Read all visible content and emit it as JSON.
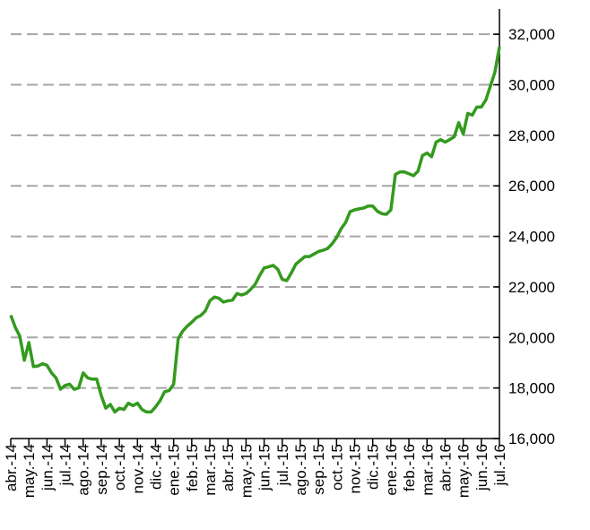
{
  "chart_data": {
    "type": "line",
    "categories": [
      "abr.-14",
      null,
      null,
      null,
      "may.-14",
      null,
      null,
      null,
      "jun.-14",
      null,
      null,
      null,
      "jul.-14",
      null,
      null,
      null,
      "ago.-14",
      null,
      null,
      null,
      "sep.-14",
      null,
      null,
      null,
      "oct.-14",
      null,
      null,
      null,
      "nov.-14",
      null,
      null,
      null,
      "dic.-14",
      null,
      null,
      null,
      "ene.-15",
      null,
      null,
      null,
      "feb.-15",
      null,
      null,
      null,
      "mar.-15",
      null,
      null,
      null,
      "abr.-15",
      null,
      null,
      null,
      "may.-15",
      null,
      null,
      null,
      "jun.-15",
      null,
      null,
      null,
      "jul.-15",
      null,
      null,
      null,
      "ago.-15",
      null,
      null,
      null,
      "sep.-15",
      null,
      null,
      null,
      "oct.-15",
      null,
      null,
      null,
      "nov.-15",
      null,
      null,
      null,
      "dic.-15",
      null,
      null,
      null,
      "ene.-16",
      null,
      null,
      null,
      "feb.-16",
      null,
      null,
      null,
      "mar.-16",
      null,
      null,
      null,
      "abr.-16",
      null,
      null,
      null,
      "may.-16",
      null,
      null,
      null,
      "jun.-16",
      null,
      null,
      null,
      "jul.-16"
    ],
    "values": [
      20880,
      20400,
      20050,
      19100,
      19800,
      18850,
      18870,
      18960,
      18900,
      18600,
      18400,
      17950,
      18100,
      18150,
      17950,
      18000,
      18600,
      18400,
      18350,
      18350,
      17700,
      17200,
      17350,
      17050,
      17200,
      17150,
      17400,
      17300,
      17400,
      17150,
      17050,
      17050,
      17250,
      17500,
      17850,
      17900,
      18150,
      19950,
      20250,
      20450,
      20600,
      20780,
      20870,
      21050,
      21450,
      21600,
      21550,
      21400,
      21450,
      21480,
      21740,
      21680,
      21740,
      21900,
      22100,
      22450,
      22750,
      22800,
      22850,
      22700,
      22300,
      22250,
      22550,
      22900,
      23050,
      23200,
      23200,
      23300,
      23400,
      23450,
      23520,
      23700,
      23950,
      24300,
      24550,
      24980,
      25050,
      25090,
      25120,
      25200,
      25200,
      25000,
      24900,
      24870,
      25050,
      26450,
      26550,
      26550,
      26480,
      26400,
      26580,
      27200,
      27300,
      27150,
      27730,
      27830,
      27730,
      27830,
      27940,
      28500,
      28050,
      28870,
      28800,
      29120,
      29120,
      29400,
      29950,
      30500,
      31500
    ],
    "color": "#339a1e",
    "ylim": [
      16000,
      33000
    ],
    "yticks": [
      {
        "value": 16000,
        "label": "16,000"
      },
      {
        "value": 18000,
        "label": "18,000"
      },
      {
        "value": 20000,
        "label": "20,000"
      },
      {
        "value": 22000,
        "label": "22,000"
      },
      {
        "value": 24000,
        "label": "24,000"
      },
      {
        "value": 26000,
        "label": "26,000"
      },
      {
        "value": 28000,
        "label": "28,000"
      },
      {
        "value": 30000,
        "label": "30,000"
      },
      {
        "value": 32000,
        "label": "32,000"
      }
    ],
    "grid": true
  }
}
